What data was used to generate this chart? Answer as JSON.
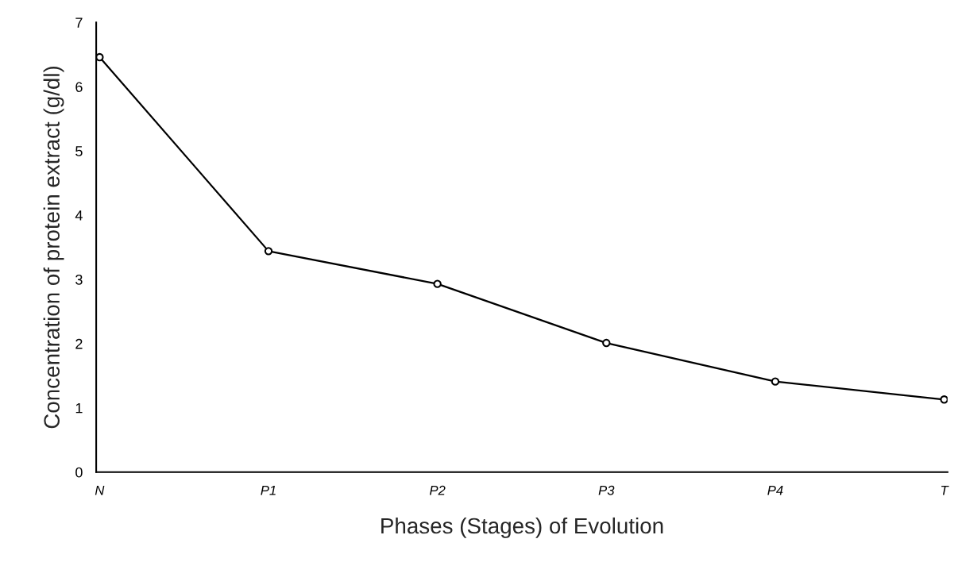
{
  "chart_data": {
    "type": "line",
    "xlabel": "Phases (Stages) of Evolution",
    "ylabel": "Concentration of protein extract (g/dl)",
    "categories": [
      "N",
      "P1",
      "P2",
      "P3",
      "P4",
      "T"
    ],
    "series": [
      {
        "color": "#000000",
        "values": [
          6.46,
          3.44,
          2.93,
          2.01,
          1.41,
          1.13
        ]
      }
    ],
    "ylim": [
      0,
      7
    ],
    "yticks": [
      0,
      1,
      2,
      3,
      4,
      5,
      6,
      7
    ],
    "grid": false,
    "legend": false,
    "marker": "circle",
    "line_style": "solid"
  }
}
